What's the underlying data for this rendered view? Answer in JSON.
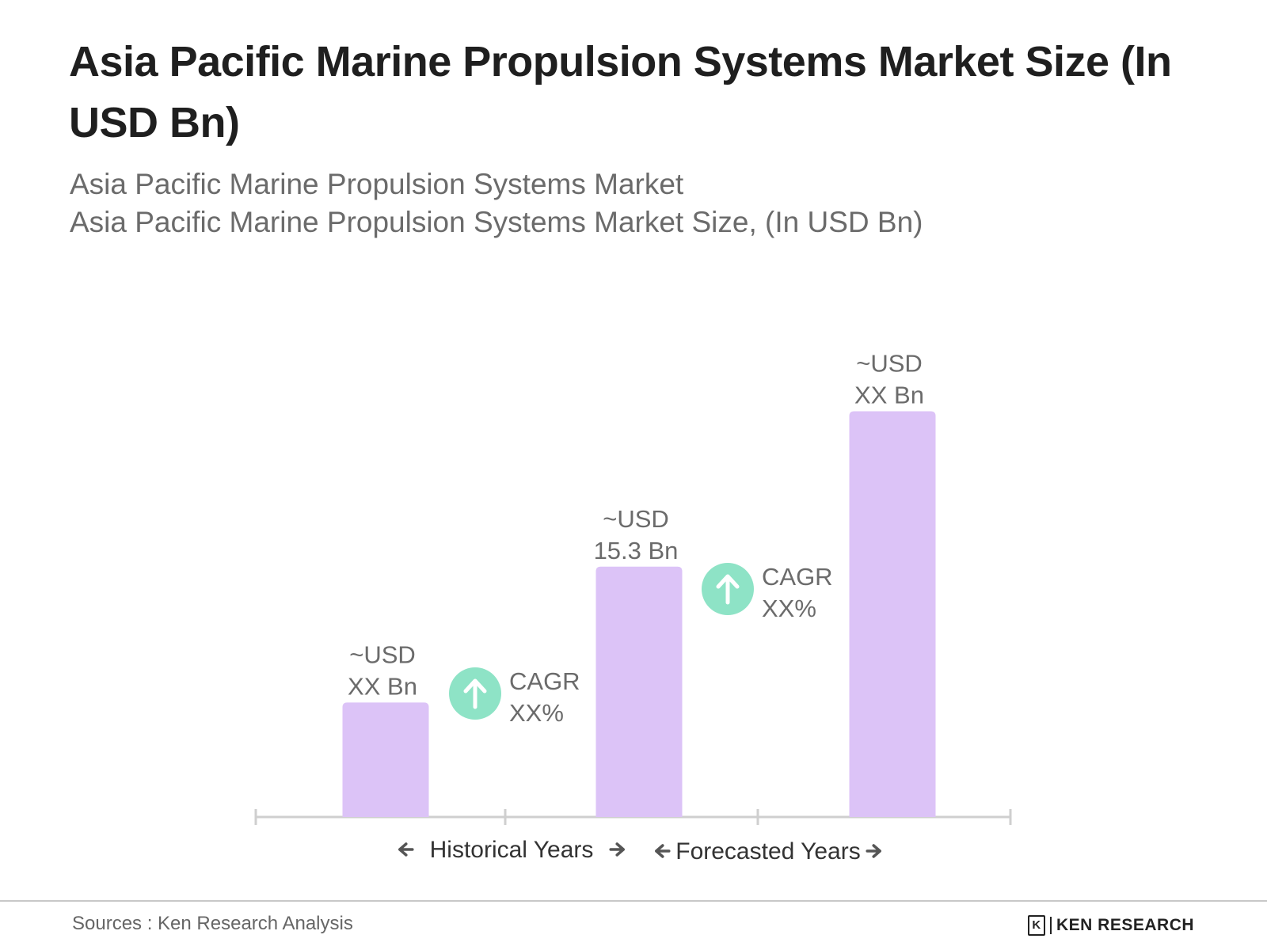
{
  "title": "Asia Pacific Marine Propulsion Systems Market Size (In USD Bn)",
  "subtitle_line1": "Asia Pacific Marine Propulsion Systems Market",
  "subtitle_line2": "Asia Pacific Marine Propulsion Systems Market Size, (In USD Bn)",
  "colors": {
    "bar": "#dcc3f7",
    "cagr_icon": "#8ee3c6",
    "axis": "#cfcfcf"
  },
  "chart_data": {
    "type": "bar",
    "categories": [
      "",
      "",
      ""
    ],
    "values": [
      7.0,
      15.3,
      24.8
    ],
    "value_labels": [
      [
        "~USD",
        "XX Bn"
      ],
      [
        "~USD",
        "15.3 Bn"
      ],
      [
        "~USD",
        "XX Bn"
      ]
    ],
    "ylim": [
      0,
      30
    ],
    "grid": false,
    "cagr_annotations": [
      {
        "line1": "CAGR",
        "line2": "XX%",
        "icon": "up-arrow-icon"
      },
      {
        "line1": "CAGR",
        "line2": "XX%",
        "icon": "up-arrow-icon"
      }
    ],
    "periods": [
      {
        "label": "Historical Years",
        "arrows": "left-right-arrow-icons"
      },
      {
        "label": "Forecasted Years",
        "arrows": "left-right-arrow-icons"
      }
    ]
  },
  "footer": {
    "source": "Sources : Ken Research Analysis",
    "brand": "KEN RESEARCH"
  }
}
